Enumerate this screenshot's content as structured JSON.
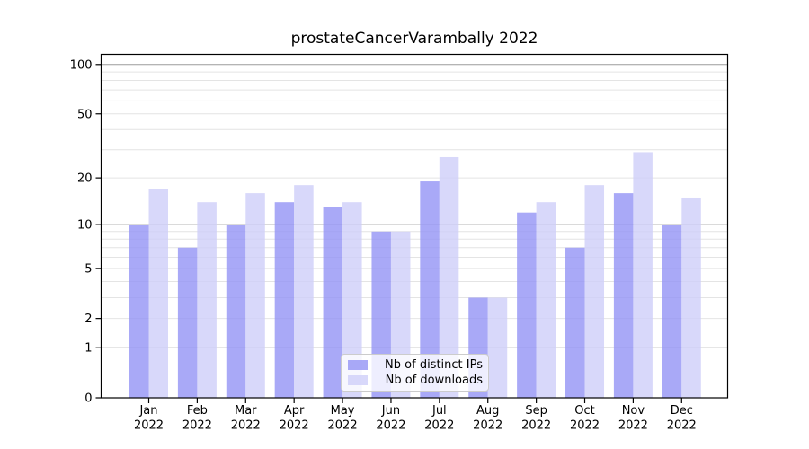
{
  "figure": {
    "title": "prostateCancerVarambally 2022",
    "background": "#ffffff"
  },
  "chart_data": {
    "type": "bar",
    "title": "prostateCancerVarambally 2022",
    "categories": [
      "Jan 2022",
      "Feb 2022",
      "Mar 2022",
      "Apr 2022",
      "May 2022",
      "Jun 2022",
      "Jul 2022",
      "Aug 2022",
      "Sep 2022",
      "Oct 2022",
      "Nov 2022",
      "Dec 2022"
    ],
    "series": [
      {
        "name": "Nb of distinct IPs",
        "color": "#9494f5",
        "opacity": 0.8,
        "values": [
          10,
          7,
          10,
          14,
          13,
          9,
          19,
          3,
          12,
          7,
          16,
          10
        ]
      },
      {
        "name": "Nb of downloads",
        "color": "#cecef9",
        "opacity": 0.8,
        "values": [
          17,
          14,
          16,
          18,
          14,
          9,
          27,
          3,
          14,
          18,
          29,
          15
        ]
      }
    ],
    "xlabel": "",
    "ylabel": "",
    "yscale": "log1p",
    "ylim": [
      0,
      115
    ],
    "yticks": [
      100,
      50,
      20,
      10,
      5,
      2,
      1,
      0
    ],
    "major_gridlines": [
      1,
      10,
      100
    ],
    "minor_gridlines": [
      2,
      3,
      4,
      5,
      6,
      7,
      8,
      9,
      20,
      30,
      40,
      50,
      60,
      70,
      80,
      90
    ],
    "grid": true,
    "legend_position": "lower center",
    "colors": {
      "spine": "#000000",
      "major_grid": "#9b9b9b",
      "minor_grid": "#e4e4e4",
      "tick_text": "#000000"
    }
  }
}
